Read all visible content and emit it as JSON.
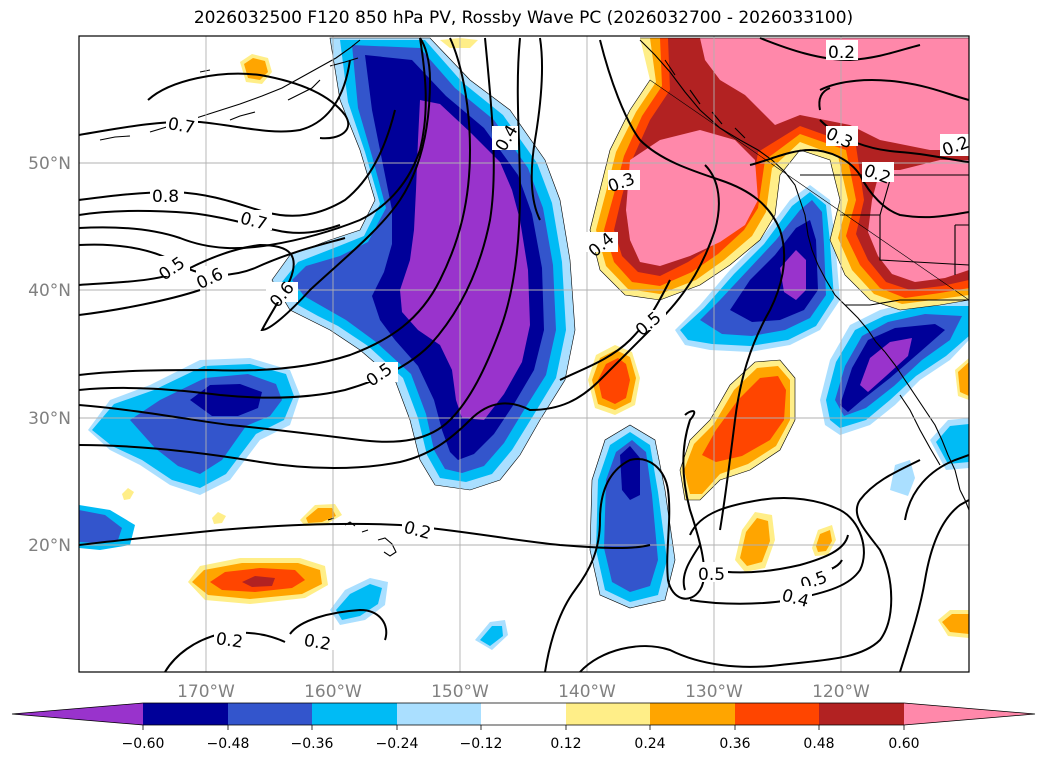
{
  "title": "2026032500 F120 850 hPa PV, Rossby Wave PC (2026032700 - 2026033100)",
  "axes": {
    "lon_labels": [
      "170°W",
      "160°W",
      "150°W",
      "140°W",
      "130°W",
      "120°W"
    ],
    "lat_labels": [
      "50°N",
      "40°N",
      "30°N",
      "20°N"
    ]
  },
  "colorbar": {
    "colors": [
      "#9933cc",
      "#000099",
      "#3355cc",
      "#00bbf5",
      "#aadfff",
      "#ffffff",
      "#ffee88",
      "#ffa500",
      "#ff4500",
      "#b22222",
      "#ff88aa"
    ],
    "tick_labels": [
      "−0.60",
      "−0.48",
      "−0.36",
      "−0.24",
      "−0.12",
      "0.12",
      "0.24",
      "0.36",
      "0.48",
      "0.60"
    ]
  },
  "contour_labels": [
    "0.7",
    "0.8",
    "0.7",
    "0.5",
    "0.6",
    "0.6",
    "0.5",
    "0.5",
    "0.4",
    "0.3",
    "0.2",
    "0.3",
    "0.2",
    "0.2",
    "0.2",
    "0.2",
    "0.5",
    "0.5",
    "0.4",
    "0.4",
    "0.2"
  ]
}
